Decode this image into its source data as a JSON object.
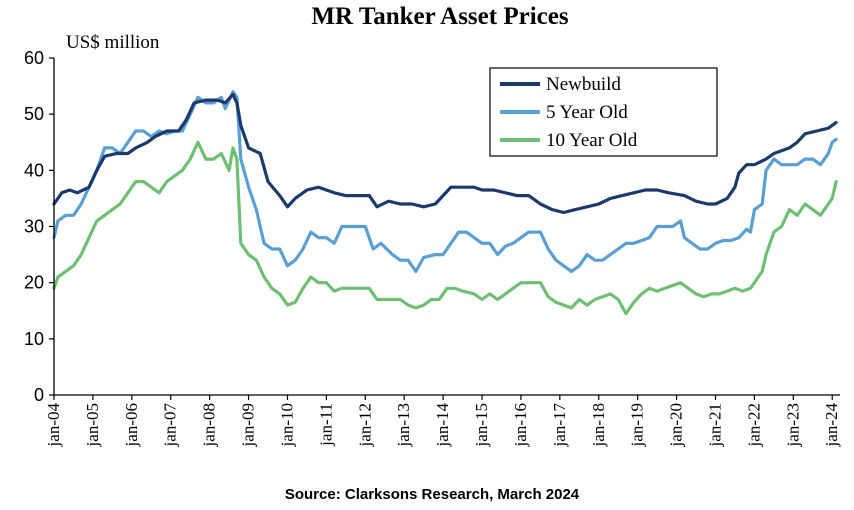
{
  "chart_data": {
    "type": "line",
    "title": "MR Tanker Asset Prices",
    "ylabel": "US$ million",
    "xlabel": "",
    "ylim": [
      0,
      60
    ],
    "yticks": [
      0,
      10,
      20,
      30,
      40,
      50,
      60
    ],
    "xlim": [
      2004.0,
      2024.2
    ],
    "xtick_labels": [
      "jan-04",
      "jan-05",
      "jan-06",
      "jan-07",
      "jan-08",
      "jan-09",
      "jan-10",
      "jan-11",
      "jan-12",
      "jan-13",
      "jan-14",
      "jan-15",
      "jan-16",
      "jan-17",
      "jan-18",
      "jan-19",
      "jan-20",
      "jan-21",
      "jan-22",
      "jan-23",
      "jan-24"
    ],
    "xtick_values": [
      2004,
      2005,
      2006,
      2007,
      2008,
      2009,
      2010,
      2011,
      2012,
      2013,
      2014,
      2015,
      2016,
      2017,
      2018,
      2019,
      2020,
      2021,
      2022,
      2023,
      2024
    ],
    "legend_position": "top-right",
    "source": "Source: Clarksons Research, March 2024",
    "series": [
      {
        "name": "Newbuild",
        "color": "#1a3a6b",
        "points": [
          [
            2004.0,
            34
          ],
          [
            2004.2,
            36
          ],
          [
            2004.4,
            36.5
          ],
          [
            2004.6,
            36
          ],
          [
            2004.9,
            37
          ],
          [
            2005.1,
            40
          ],
          [
            2005.3,
            42.5
          ],
          [
            2005.6,
            43
          ],
          [
            2005.9,
            43
          ],
          [
            2006.1,
            44
          ],
          [
            2006.4,
            45
          ],
          [
            2006.6,
            46
          ],
          [
            2006.9,
            47
          ],
          [
            2007.2,
            47
          ],
          [
            2007.4,
            49
          ],
          [
            2007.6,
            52
          ],
          [
            2007.9,
            52.5
          ],
          [
            2008.2,
            52.5
          ],
          [
            2008.4,
            52
          ],
          [
            2008.6,
            53.5
          ],
          [
            2008.7,
            52
          ],
          [
            2008.8,
            48
          ],
          [
            2009.0,
            44
          ],
          [
            2009.3,
            43
          ],
          [
            2009.5,
            38
          ],
          [
            2009.8,
            35.5
          ],
          [
            2010.0,
            33.5
          ],
          [
            2010.2,
            35
          ],
          [
            2010.5,
            36.5
          ],
          [
            2010.8,
            37
          ],
          [
            2011.2,
            36
          ],
          [
            2011.5,
            35.5
          ],
          [
            2011.8,
            35.5
          ],
          [
            2012.1,
            35.5
          ],
          [
            2012.3,
            33.5
          ],
          [
            2012.6,
            34.5
          ],
          [
            2012.9,
            34
          ],
          [
            2013.2,
            34
          ],
          [
            2013.5,
            33.5
          ],
          [
            2013.8,
            34
          ],
          [
            2014.0,
            35.5
          ],
          [
            2014.2,
            37
          ],
          [
            2014.5,
            37
          ],
          [
            2014.8,
            37
          ],
          [
            2015.0,
            36.5
          ],
          [
            2015.3,
            36.5
          ],
          [
            2015.6,
            36
          ],
          [
            2015.9,
            35.5
          ],
          [
            2016.2,
            35.5
          ],
          [
            2016.5,
            34
          ],
          [
            2016.8,
            33
          ],
          [
            2017.1,
            32.5
          ],
          [
            2017.4,
            33
          ],
          [
            2017.7,
            33.5
          ],
          [
            2018.0,
            34
          ],
          [
            2018.3,
            35
          ],
          [
            2018.6,
            35.5
          ],
          [
            2018.9,
            36
          ],
          [
            2019.2,
            36.5
          ],
          [
            2019.5,
            36.5
          ],
          [
            2019.8,
            36
          ],
          [
            2020.2,
            35.5
          ],
          [
            2020.5,
            34.5
          ],
          [
            2020.8,
            34
          ],
          [
            2021.0,
            34
          ],
          [
            2021.3,
            35
          ],
          [
            2021.5,
            37
          ],
          [
            2021.6,
            39.5
          ],
          [
            2021.8,
            41
          ],
          [
            2022.0,
            41
          ],
          [
            2022.3,
            42
          ],
          [
            2022.5,
            43
          ],
          [
            2022.7,
            43.5
          ],
          [
            2022.9,
            44
          ],
          [
            2023.1,
            45
          ],
          [
            2023.3,
            46.5
          ],
          [
            2023.6,
            47
          ],
          [
            2023.9,
            47.5
          ],
          [
            2024.1,
            48.5
          ]
        ]
      },
      {
        "name": "5 Year Old",
        "color": "#5a9fd4",
        "points": [
          [
            2004.0,
            28
          ],
          [
            2004.1,
            31
          ],
          [
            2004.3,
            32
          ],
          [
            2004.5,
            32
          ],
          [
            2004.7,
            34
          ],
          [
            2004.9,
            37
          ],
          [
            2005.1,
            40
          ],
          [
            2005.3,
            44
          ],
          [
            2005.5,
            44
          ],
          [
            2005.7,
            43
          ],
          [
            2005.9,
            45
          ],
          [
            2006.1,
            47
          ],
          [
            2006.3,
            47
          ],
          [
            2006.5,
            46
          ],
          [
            2006.7,
            47
          ],
          [
            2006.9,
            46.5
          ],
          [
            2007.1,
            47
          ],
          [
            2007.3,
            47
          ],
          [
            2007.5,
            50
          ],
          [
            2007.7,
            53
          ],
          [
            2007.9,
            52
          ],
          [
            2008.1,
            52
          ],
          [
            2008.3,
            53
          ],
          [
            2008.4,
            51
          ],
          [
            2008.6,
            54
          ],
          [
            2008.7,
            53
          ],
          [
            2008.8,
            42
          ],
          [
            2009.0,
            37
          ],
          [
            2009.2,
            33
          ],
          [
            2009.4,
            27
          ],
          [
            2009.6,
            26
          ],
          [
            2009.8,
            26
          ],
          [
            2010.0,
            23
          ],
          [
            2010.2,
            24
          ],
          [
            2010.4,
            26
          ],
          [
            2010.6,
            29
          ],
          [
            2010.8,
            28
          ],
          [
            2011.0,
            28
          ],
          [
            2011.2,
            27
          ],
          [
            2011.4,
            30
          ],
          [
            2011.6,
            30
          ],
          [
            2011.8,
            30
          ],
          [
            2012.0,
            30
          ],
          [
            2012.2,
            26
          ],
          [
            2012.4,
            27
          ],
          [
            2012.7,
            25
          ],
          [
            2012.9,
            24
          ],
          [
            2013.1,
            24
          ],
          [
            2013.3,
            22
          ],
          [
            2013.5,
            24.5
          ],
          [
            2013.8,
            25
          ],
          [
            2014.0,
            25
          ],
          [
            2014.2,
            27
          ],
          [
            2014.4,
            29
          ],
          [
            2014.6,
            29
          ],
          [
            2014.8,
            28
          ],
          [
            2015.0,
            27
          ],
          [
            2015.2,
            27
          ],
          [
            2015.4,
            25
          ],
          [
            2015.6,
            26.5
          ],
          [
            2015.8,
            27
          ],
          [
            2016.0,
            28
          ],
          [
            2016.2,
            29
          ],
          [
            2016.5,
            29
          ],
          [
            2016.7,
            26
          ],
          [
            2016.9,
            24
          ],
          [
            2017.1,
            23
          ],
          [
            2017.3,
            22
          ],
          [
            2017.5,
            23
          ],
          [
            2017.7,
            25
          ],
          [
            2017.9,
            24
          ],
          [
            2018.1,
            24
          ],
          [
            2018.3,
            25
          ],
          [
            2018.5,
            26
          ],
          [
            2018.7,
            27
          ],
          [
            2018.9,
            27
          ],
          [
            2019.1,
            27.5
          ],
          [
            2019.3,
            28
          ],
          [
            2019.5,
            30
          ],
          [
            2019.7,
            30
          ],
          [
            2019.9,
            30
          ],
          [
            2020.1,
            31
          ],
          [
            2020.2,
            28
          ],
          [
            2020.4,
            27
          ],
          [
            2020.6,
            26
          ],
          [
            2020.8,
            26
          ],
          [
            2021.0,
            27
          ],
          [
            2021.2,
            27.5
          ],
          [
            2021.4,
            27.5
          ],
          [
            2021.6,
            28
          ],
          [
            2021.8,
            29.5
          ],
          [
            2021.9,
            29
          ],
          [
            2022.0,
            33
          ],
          [
            2022.2,
            34
          ],
          [
            2022.3,
            40
          ],
          [
            2022.5,
            42
          ],
          [
            2022.7,
            41
          ],
          [
            2022.9,
            41
          ],
          [
            2023.1,
            41
          ],
          [
            2023.3,
            42
          ],
          [
            2023.5,
            42
          ],
          [
            2023.7,
            41
          ],
          [
            2023.9,
            43
          ],
          [
            2024.0,
            45
          ],
          [
            2024.1,
            45.5
          ]
        ]
      },
      {
        "name": "10 Year Old",
        "color": "#6fbf73",
        "points": [
          [
            2004.0,
            19
          ],
          [
            2004.1,
            21
          ],
          [
            2004.3,
            22
          ],
          [
            2004.5,
            23
          ],
          [
            2004.7,
            25
          ],
          [
            2004.9,
            28
          ],
          [
            2005.1,
            31
          ],
          [
            2005.3,
            32
          ],
          [
            2005.5,
            33
          ],
          [
            2005.7,
            34
          ],
          [
            2005.9,
            36
          ],
          [
            2006.1,
            38
          ],
          [
            2006.3,
            38
          ],
          [
            2006.5,
            37
          ],
          [
            2006.7,
            36
          ],
          [
            2006.9,
            38
          ],
          [
            2007.1,
            39
          ],
          [
            2007.3,
            40
          ],
          [
            2007.5,
            42
          ],
          [
            2007.7,
            45
          ],
          [
            2007.9,
            42
          ],
          [
            2008.1,
            42
          ],
          [
            2008.3,
            43
          ],
          [
            2008.5,
            40
          ],
          [
            2008.6,
            44
          ],
          [
            2008.7,
            42
          ],
          [
            2008.8,
            27
          ],
          [
            2009.0,
            25
          ],
          [
            2009.2,
            24
          ],
          [
            2009.4,
            21
          ],
          [
            2009.6,
            19
          ],
          [
            2009.8,
            18
          ],
          [
            2010.0,
            16
          ],
          [
            2010.2,
            16.5
          ],
          [
            2010.4,
            19
          ],
          [
            2010.6,
            21
          ],
          [
            2010.8,
            20
          ],
          [
            2011.0,
            20
          ],
          [
            2011.2,
            18.5
          ],
          [
            2011.4,
            19
          ],
          [
            2011.7,
            19
          ],
          [
            2011.9,
            19
          ],
          [
            2012.1,
            19
          ],
          [
            2012.3,
            17
          ],
          [
            2012.6,
            17
          ],
          [
            2012.9,
            17
          ],
          [
            2013.1,
            16
          ],
          [
            2013.3,
            15.5
          ],
          [
            2013.5,
            16
          ],
          [
            2013.7,
            17
          ],
          [
            2013.9,
            17
          ],
          [
            2014.1,
            19
          ],
          [
            2014.3,
            19
          ],
          [
            2014.5,
            18.5
          ],
          [
            2014.8,
            18
          ],
          [
            2015.0,
            17
          ],
          [
            2015.2,
            18
          ],
          [
            2015.4,
            17
          ],
          [
            2015.6,
            18
          ],
          [
            2015.8,
            19
          ],
          [
            2016.0,
            20
          ],
          [
            2016.3,
            20
          ],
          [
            2016.5,
            20
          ],
          [
            2016.7,
            17.5
          ],
          [
            2016.9,
            16.5
          ],
          [
            2017.1,
            16
          ],
          [
            2017.3,
            15.5
          ],
          [
            2017.5,
            17
          ],
          [
            2017.7,
            16
          ],
          [
            2017.9,
            17
          ],
          [
            2018.1,
            17.5
          ],
          [
            2018.3,
            18
          ],
          [
            2018.5,
            17
          ],
          [
            2018.7,
            14.5
          ],
          [
            2018.9,
            16.5
          ],
          [
            2019.1,
            18
          ],
          [
            2019.3,
            19
          ],
          [
            2019.5,
            18.5
          ],
          [
            2019.7,
            19
          ],
          [
            2019.9,
            19.5
          ],
          [
            2020.1,
            20
          ],
          [
            2020.3,
            19
          ],
          [
            2020.5,
            18
          ],
          [
            2020.7,
            17.5
          ],
          [
            2020.9,
            18
          ],
          [
            2021.1,
            18
          ],
          [
            2021.3,
            18.5
          ],
          [
            2021.5,
            19
          ],
          [
            2021.7,
            18.5
          ],
          [
            2021.9,
            19
          ],
          [
            2022.0,
            20
          ],
          [
            2022.2,
            22
          ],
          [
            2022.3,
            25
          ],
          [
            2022.5,
            29
          ],
          [
            2022.7,
            30
          ],
          [
            2022.9,
            33
          ],
          [
            2023.1,
            32
          ],
          [
            2023.3,
            34
          ],
          [
            2023.5,
            33
          ],
          [
            2023.7,
            32
          ],
          [
            2023.9,
            34
          ],
          [
            2024.0,
            35
          ],
          [
            2024.1,
            38
          ]
        ]
      }
    ]
  }
}
